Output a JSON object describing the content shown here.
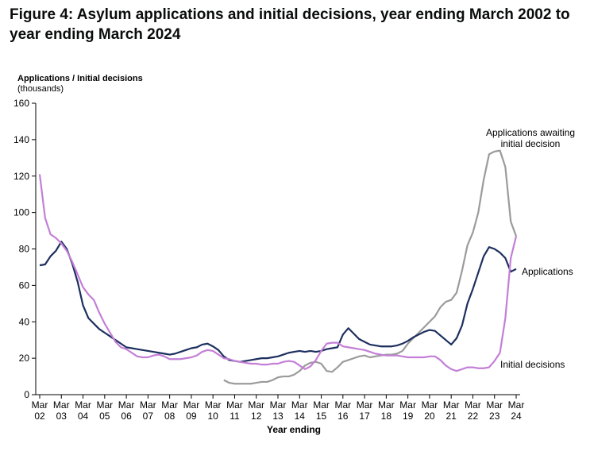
{
  "chart_data": {
    "type": "line",
    "title": "Figure 4: Asylum applications and initial decisions, year ending March 2002 to year ending March 2024",
    "ylabel": "Applications / Initial decisions",
    "yunit": "(thousands)",
    "xlabel": "Year ending",
    "categories": [
      "Mar 02",
      null,
      null,
      null,
      "Mar 03",
      null,
      null,
      null,
      "Mar 04",
      null,
      null,
      null,
      "Mar 05",
      null,
      null,
      null,
      "Mar 06",
      null,
      null,
      null,
      "Mar 07",
      null,
      null,
      null,
      "Mar 08",
      null,
      null,
      null,
      "Mar 09",
      null,
      null,
      null,
      "Mar 10",
      null,
      null,
      null,
      "Mar 11",
      null,
      null,
      null,
      "Mar 12",
      null,
      null,
      null,
      "Mar 13",
      null,
      null,
      null,
      "Mar 14",
      null,
      null,
      null,
      "Mar 15",
      null,
      null,
      null,
      "Mar 16",
      null,
      null,
      null,
      "Mar 17",
      null,
      null,
      null,
      "Mar 18",
      null,
      null,
      null,
      "Mar 19",
      null,
      null,
      null,
      "Mar 20",
      null,
      null,
      null,
      "Mar 21",
      null,
      null,
      null,
      "Mar 22",
      null,
      null,
      null,
      "Mar 23",
      null,
      null,
      null,
      "Mar 24"
    ],
    "ylim": [
      0,
      160
    ],
    "yticks": [
      0,
      20,
      40,
      60,
      80,
      100,
      120,
      140,
      160
    ],
    "grid": false,
    "series": [
      {
        "name": "Applications awaiting initial decision",
        "color": "#9b9b9b",
        "values": [
          null,
          null,
          null,
          null,
          null,
          null,
          null,
          null,
          null,
          null,
          null,
          null,
          null,
          null,
          null,
          null,
          null,
          null,
          null,
          null,
          null,
          null,
          null,
          null,
          null,
          null,
          null,
          null,
          null,
          null,
          null,
          null,
          null,
          null,
          8,
          6.5,
          6,
          6,
          6,
          6,
          6.5,
          7,
          7,
          8,
          9.5,
          10,
          10,
          11,
          13,
          16,
          17.5,
          18,
          17,
          13,
          12.5,
          15,
          18,
          19,
          20,
          21,
          21.5,
          20.5,
          21,
          21.5,
          22,
          22,
          22.5,
          24,
          28,
          31,
          34,
          37,
          40,
          43,
          48,
          51,
          52,
          56,
          68,
          82,
          89,
          100,
          118,
          132,
          133.5,
          134,
          125,
          95,
          87
        ]
      },
      {
        "name": "Applications",
        "color": "#1d2f5e",
        "values": [
          71,
          71.5,
          76,
          79,
          84,
          80,
          72,
          62,
          49,
          42,
          39,
          36,
          34,
          32,
          30,
          28,
          26,
          25.5,
          25,
          24.5,
          24,
          23.5,
          23,
          22.5,
          22,
          22.5,
          23.5,
          24.5,
          25.5,
          26,
          27.5,
          28,
          26.5,
          24.5,
          21,
          19,
          18.5,
          18,
          18.5,
          19,
          19.5,
          20,
          20,
          20.5,
          21,
          22,
          23,
          23.5,
          24,
          23.5,
          24,
          23.5,
          24,
          25,
          25.5,
          26,
          33,
          36.5,
          33.5,
          30.5,
          29,
          27.5,
          27,
          26.5,
          26.5,
          26.5,
          27,
          28,
          29.5,
          31.5,
          33,
          34.5,
          35.5,
          35,
          32.5,
          30,
          27.5,
          31,
          38,
          50,
          58,
          67,
          76,
          81,
          80,
          78,
          75,
          67.5,
          69
        ]
      },
      {
        "name": "Initial decisions",
        "color": "#c37fd6",
        "values": [
          121,
          97,
          88,
          86,
          83,
          79,
          73,
          66,
          59,
          55,
          52,
          45,
          39,
          34,
          29,
          26,
          25,
          23,
          21,
          20.5,
          20.5,
          21.5,
          22,
          21,
          19.5,
          19.5,
          19.5,
          20,
          20.5,
          21.5,
          23.5,
          24.5,
          24,
          22,
          20,
          19.5,
          18.5,
          18,
          17.5,
          17,
          17,
          16.5,
          16.5,
          17,
          17,
          18,
          18.5,
          18,
          16,
          14,
          15.5,
          19,
          24,
          28,
          28.5,
          28.5,
          26.5,
          26,
          25.5,
          25,
          24.5,
          23.5,
          22.5,
          22,
          21.5,
          21.5,
          21.5,
          21,
          20.5,
          20.5,
          20.5,
          20.5,
          21,
          21,
          19,
          16,
          14,
          13,
          14,
          15,
          15,
          14.5,
          14.5,
          15,
          18.5,
          23,
          42,
          75,
          87
        ]
      }
    ]
  }
}
